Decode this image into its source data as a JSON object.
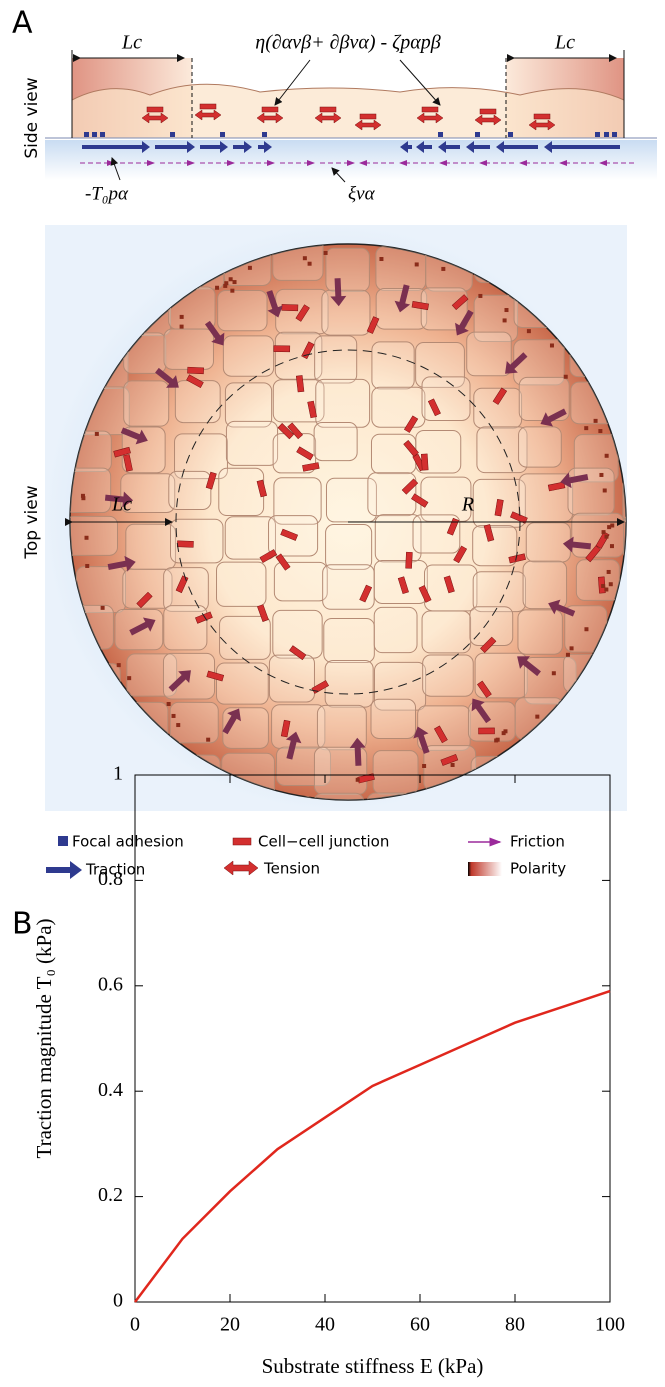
{
  "figure": {
    "panel_a": "A",
    "side_view": "Side view",
    "top_view": "Top view",
    "lc_left": "Lc",
    "lc_right": "Lc",
    "lc_top": "Lc",
    "radius": "R",
    "stress_eq": "η(∂αvβ+ ∂βvα) - ζpαpβ",
    "traction_eq": "-T₀pα",
    "friction_eq": "ξvα",
    "legend": [
      "Focal adhesion",
      "Cell−cell junction",
      "Friction",
      "Traction",
      "Tension",
      "Polarity"
    ],
    "panel_b": "B"
  },
  "chart_data": {
    "type": "line",
    "x": [
      0,
      10,
      20,
      30,
      40,
      50,
      60,
      70,
      80,
      90,
      100
    ],
    "values": [
      0,
      0.12,
      0.21,
      0.29,
      0.35,
      0.41,
      0.45,
      0.49,
      0.53,
      0.56,
      0.59
    ],
    "color": "#e0271d",
    "xlim": [
      0,
      100
    ],
    "ylim": [
      0,
      1
    ],
    "xticks": [
      0,
      20,
      40,
      60,
      80,
      100
    ],
    "yticks": [
      0,
      0.2,
      0.4,
      0.6,
      0.8,
      1
    ],
    "xlabel": "Substrate stiffness   E (kPa)",
    "ylabel": "Traction magnitude   T₀ (kPa)"
  }
}
